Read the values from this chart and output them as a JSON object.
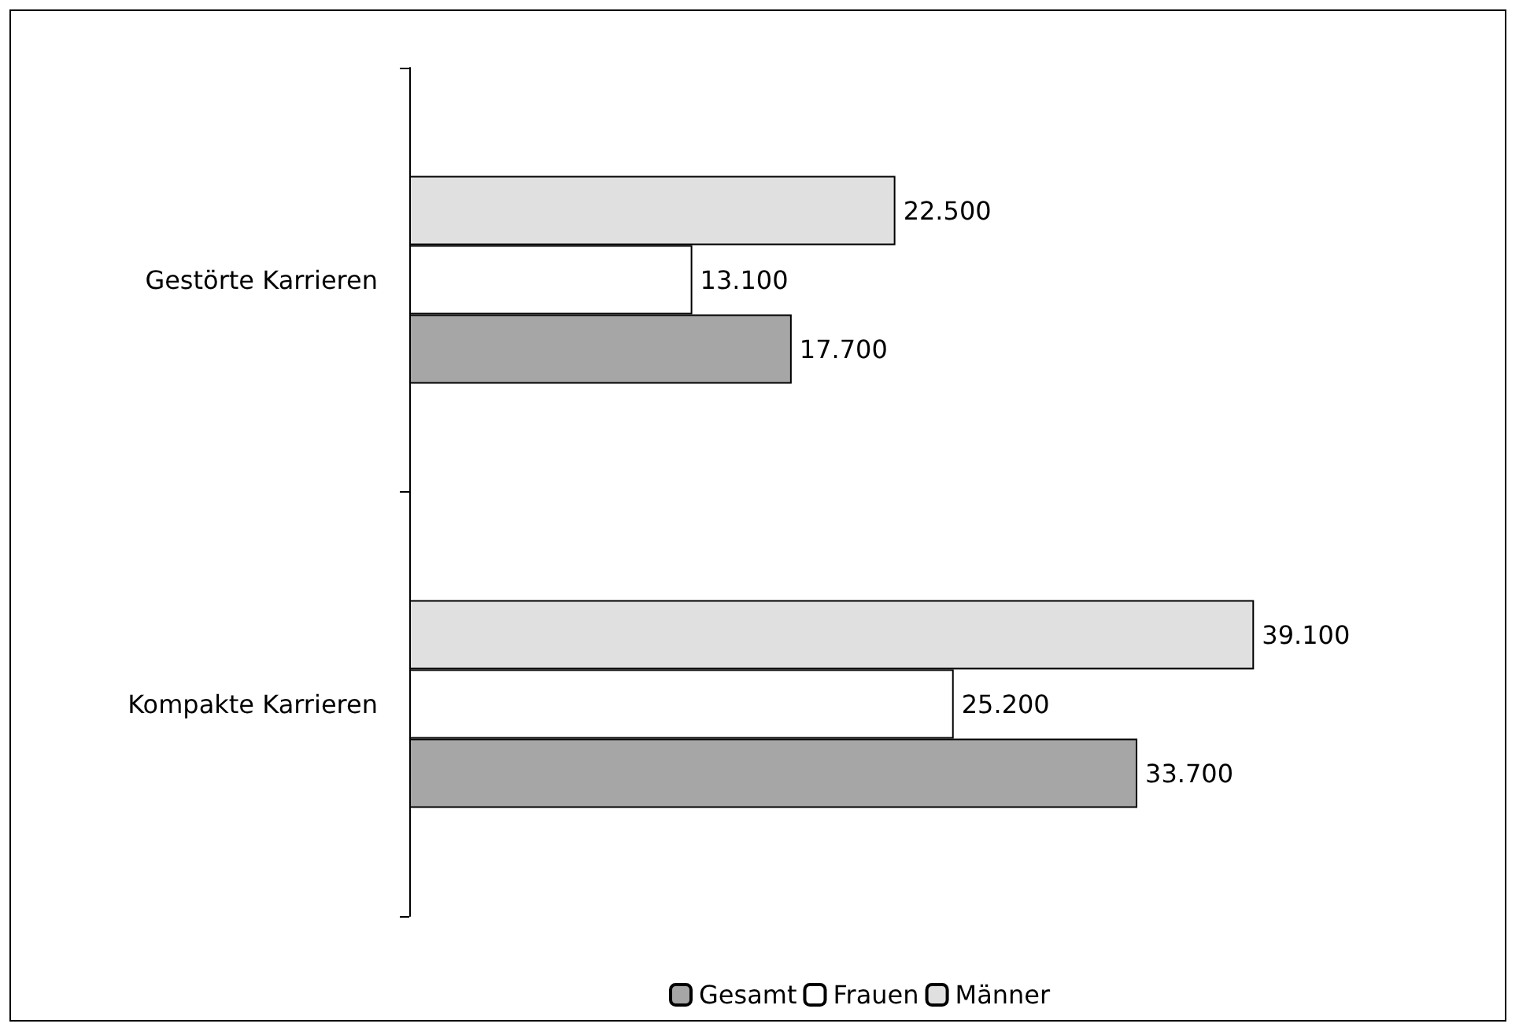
{
  "chart_data": {
    "type": "bar",
    "orientation": "horizontal",
    "categories": [
      "Gestörte Karrieren",
      "Kompakte Karrieren"
    ],
    "series": [
      {
        "name": "Gesamt",
        "color": "#a6a6a6",
        "values": [
          17700,
          33700
        ],
        "value_labels": [
          "17.700",
          "33.700"
        ]
      },
      {
        "name": "Frauen",
        "color": "#ffffff",
        "values": [
          13100,
          25200
        ],
        "value_labels": [
          "13.100",
          "25.200"
        ]
      },
      {
        "name": "Männer",
        "color": "#e0e0e0",
        "values": [
          22500,
          39100
        ],
        "value_labels": [
          "22.500",
          "39.100"
        ]
      }
    ],
    "legend": "bottom",
    "grid": false
  }
}
